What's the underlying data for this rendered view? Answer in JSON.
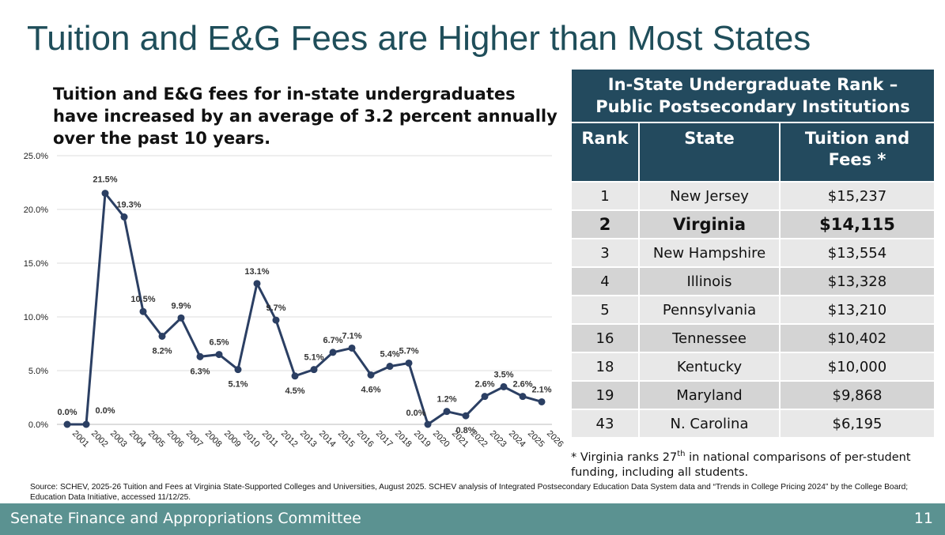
{
  "slide": {
    "title": "Tuition and E&G Fees are Higher than Most States",
    "subtitle": "Tuition and E&G fees for in-state undergraduates have increased by an average of 3.2 percent annually over the past 10 years.",
    "source": "Source: SCHEV, 2025-26 Tuition and Fees at Virginia State-Supported Colleges and Universities, August 2025. SCHEV analysis of Integrated Postsecondary Education Data System data and “Trends in College Pricing 2024” by the College Board;  Education Data Initiative, accessed 11/12/25.",
    "footer_text": "Senate Finance and Appropriations Committee",
    "page_number": "11"
  },
  "chart_data": {
    "type": "line",
    "title": "",
    "xlabel": "",
    "ylabel": "",
    "ylim": [
      0,
      25
    ],
    "y_ticks": [
      "0.0%",
      "5.0%",
      "10.0%",
      "15.0%",
      "20.0%",
      "25.0%"
    ],
    "grid": true,
    "color": "#2b3f63",
    "categories": [
      "2001",
      "2002",
      "2003",
      "2004",
      "2005",
      "2006",
      "2007",
      "2008",
      "2009",
      "2010",
      "2011",
      "2012",
      "2013",
      "2014",
      "2015",
      "2016",
      "2017",
      "2018",
      "2019",
      "2020",
      "2021",
      "2022",
      "2023",
      "2024",
      "2025",
      "2026"
    ],
    "values": [
      0.0,
      0.0,
      21.5,
      19.3,
      10.5,
      8.2,
      9.9,
      6.3,
      6.5,
      5.1,
      13.1,
      9.7,
      4.5,
      5.1,
      6.7,
      7.1,
      4.6,
      5.4,
      5.7,
      0.0,
      1.2,
      0.8,
      2.6,
      3.5,
      2.6,
      2.1
    ],
    "data_labels": [
      "0.0%",
      "0.0%",
      "21.5%",
      "19.3%",
      "10.5%",
      "8.2%",
      "9.9%",
      "6.3%",
      "6.5%",
      "5.1%",
      "13.1%",
      "9.7%",
      "4.5%",
      "5.1%",
      "6.7%",
      "7.1%",
      "4.6%",
      "5.4%",
      "5.7%",
      "0.0%",
      "1.2%",
      "0.8%",
      "2.6%",
      "3.5%",
      "2.6%",
      "2.1%"
    ]
  },
  "rank_table": {
    "title_line1": "In-State Undergraduate Rank –",
    "title_line2": "Public Postsecondary Institutions",
    "headers": {
      "rank": "Rank",
      "state": "State",
      "fees_line1": "Tuition and",
      "fees_line2": "Fees *"
    },
    "rows": [
      {
        "rank": "1",
        "state": "New Jersey",
        "fees": "$15,237"
      },
      {
        "rank": "2",
        "state": "Virginia",
        "fees": "$14,115"
      },
      {
        "rank": "3",
        "state": "New Hampshire",
        "fees": "$13,554"
      },
      {
        "rank": "4",
        "state": "Illinois",
        "fees": "$13,328"
      },
      {
        "rank": "5",
        "state": "Pennsylvania",
        "fees": "$13,210"
      },
      {
        "rank": "16",
        "state": "Tennessee",
        "fees": "$10,402"
      },
      {
        "rank": "18",
        "state": "Kentucky",
        "fees": "$10,000"
      },
      {
        "rank": "19",
        "state": "Maryland",
        "fees": "$9,868"
      },
      {
        "rank": "43",
        "state": "N. Carolina",
        "fees": "$6,195"
      }
    ],
    "footnote_pre": "* Virginia ranks 27",
    "footnote_sup": "th",
    "footnote_post": " in national comparisons of per-student funding, including all students."
  }
}
